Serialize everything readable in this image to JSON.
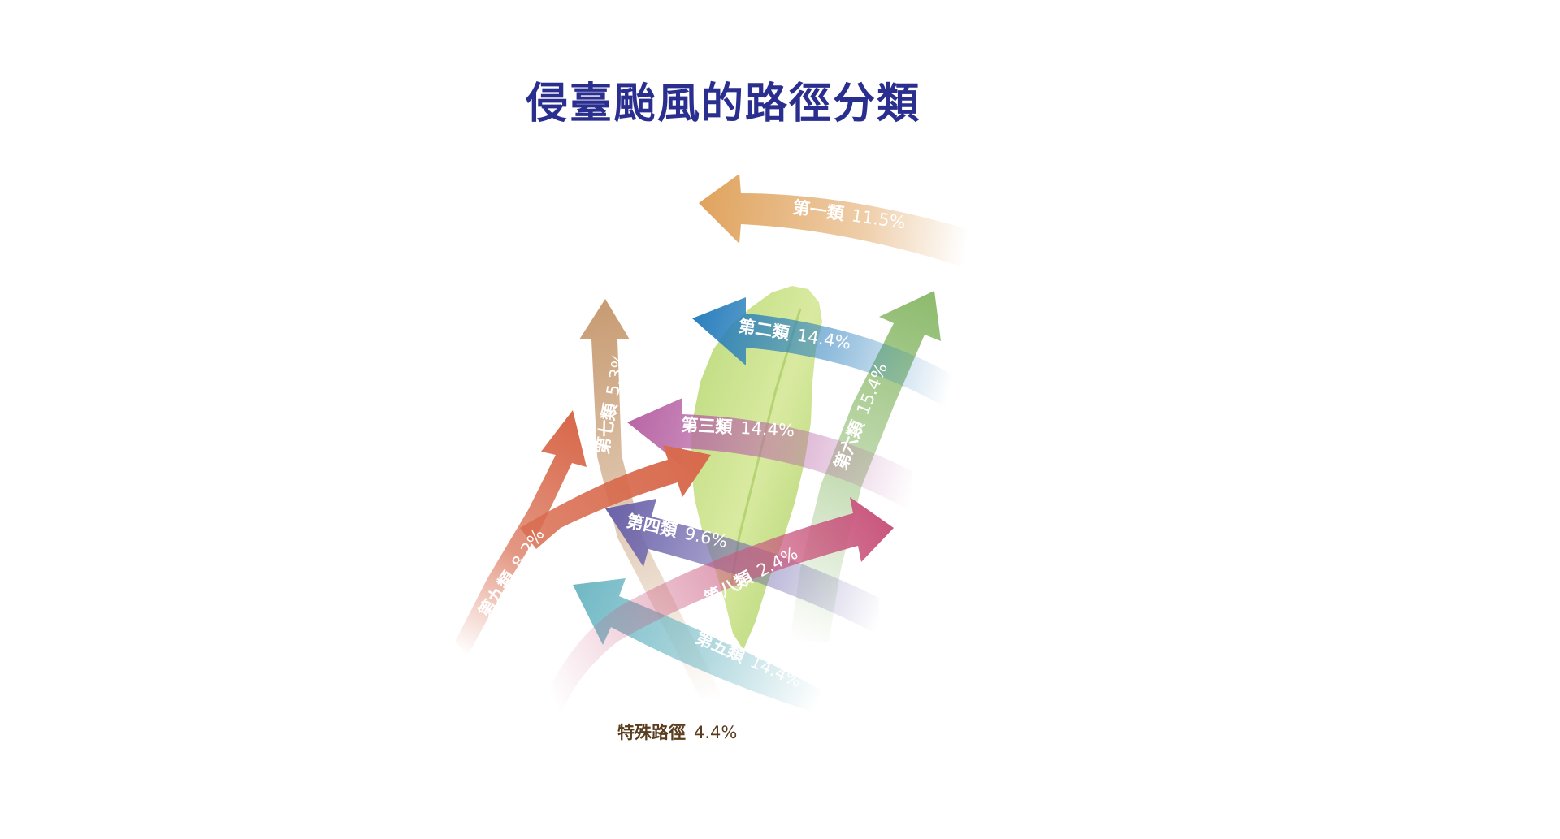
{
  "title": "侵臺颱風的路徑分類",
  "colors": {
    "title": "#2a2f8f",
    "route1": "#e0a35e",
    "route2": "#2a7fbd",
    "route3": "#b865a5",
    "route4": "#6b63ab",
    "route5": "#6fb8c4",
    "route6": "#8dbb6d",
    "route7": "#c79b72",
    "route8": "#c9577e",
    "route9": "#d86a4d",
    "taiwan": "#c7e08a"
  },
  "routes": [
    {
      "id": "route1",
      "name": "第一類",
      "percent": "11.5%",
      "direction": "westward-north"
    },
    {
      "id": "route2",
      "name": "第二類",
      "percent": "14.4%",
      "direction": "westward"
    },
    {
      "id": "route3",
      "name": "第三類",
      "percent": "14.4%",
      "direction": "westward"
    },
    {
      "id": "route4",
      "name": "第四類",
      "percent": "9.6%",
      "direction": "westward"
    },
    {
      "id": "route5",
      "name": "第五類",
      "percent": "14.4%",
      "direction": "northwest"
    },
    {
      "id": "route6",
      "name": "第六類",
      "percent": "15.4%",
      "direction": "northward"
    },
    {
      "id": "route7",
      "name": "第七類",
      "percent": "5.3%",
      "direction": "northward"
    },
    {
      "id": "route8",
      "name": "第八類",
      "percent": "2.4%",
      "direction": "northeast"
    },
    {
      "id": "route9",
      "name": "第九類",
      "percent": "8.2%",
      "direction": "northeast-split"
    }
  ],
  "special": {
    "name": "特殊路徑",
    "percent": "4.4%"
  }
}
